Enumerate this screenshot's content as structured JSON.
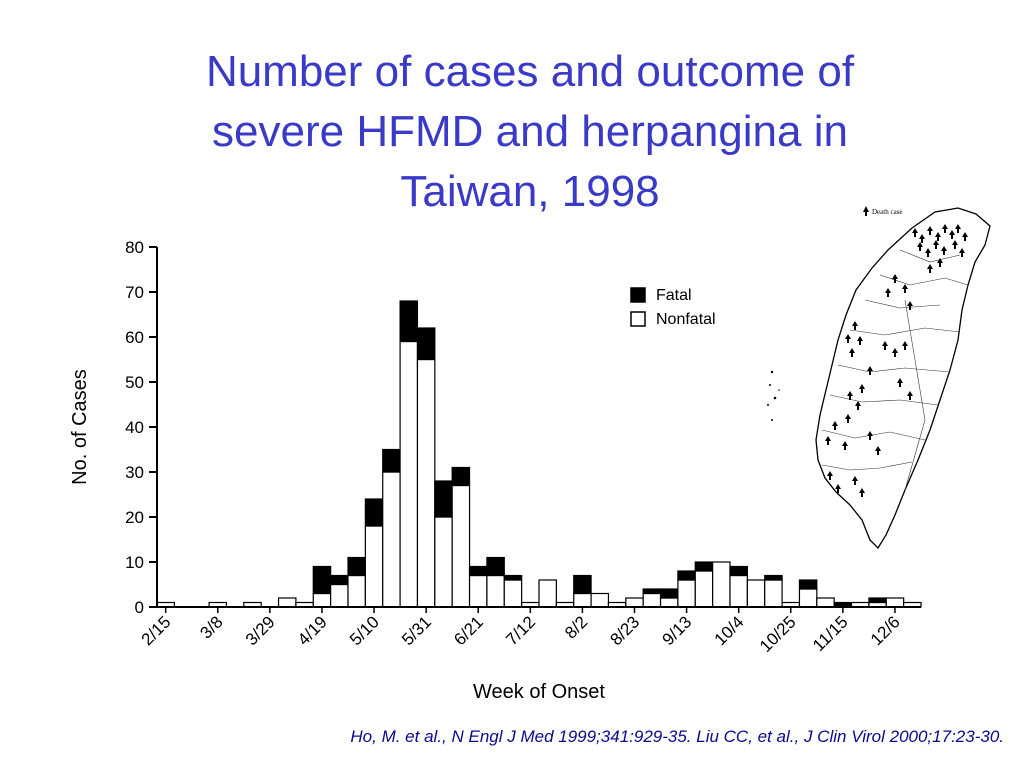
{
  "slide": {
    "title_lines": [
      "Number of cases and outcome of",
      "severe HFMD and herpangina in",
      "Taiwan, 1998"
    ],
    "citation": "Ho, M. et al., N Engl J Med 1999;341:929-35. Liu CC, et al., J Clin Virol 2000;17:23-30."
  },
  "map": {
    "legend_text": "Death case",
    "icon": "taiwan-map-icon",
    "marker_icon": "death-case-marker-icon"
  },
  "colors": {
    "title": "#3a3ac8",
    "citation": "#0a0a8a",
    "fatal": "#000000",
    "nonfatal": "#ffffff",
    "axis": "#000000"
  },
  "chart_data": {
    "type": "bar",
    "stacked": true,
    "title": "",
    "xlabel": "Week of Onset",
    "ylabel": "No. of Cases",
    "ylim": [
      0,
      80
    ],
    "yticks": [
      0,
      10,
      20,
      30,
      40,
      50,
      60,
      70,
      80
    ],
    "x_tick_labels": [
      "2/15",
      "3/8",
      "3/29",
      "4/19",
      "5/10",
      "5/31",
      "6/21",
      "7/12",
      "8/2",
      "8/23",
      "9/13",
      "10/4",
      "10/25",
      "11/15",
      "12/6"
    ],
    "weeks_per_tick": 3,
    "legend": {
      "placement": "top-right",
      "entries": [
        "Fatal",
        "Nonfatal"
      ]
    },
    "series": [
      {
        "name": "Nonfatal",
        "values": [
          1,
          0,
          0,
          1,
          0,
          1,
          0,
          2,
          1,
          3,
          5,
          7,
          18,
          30,
          59,
          55,
          20,
          27,
          7,
          7,
          6,
          1,
          6,
          1,
          3,
          3,
          1,
          2,
          3,
          2,
          6,
          8,
          10,
          7,
          6,
          6,
          1,
          4,
          2,
          0,
          1,
          1,
          2,
          1
        ]
      },
      {
        "name": "Fatal",
        "values": [
          0,
          0,
          0,
          0,
          0,
          0,
          0,
          0,
          0,
          6,
          2,
          4,
          6,
          5,
          9,
          7,
          8,
          4,
          2,
          4,
          1,
          0,
          0,
          0,
          4,
          0,
          0,
          0,
          1,
          2,
          2,
          2,
          0,
          2,
          0,
          1,
          0,
          2,
          0,
          1,
          0,
          1,
          0,
          0
        ]
      }
    ]
  }
}
